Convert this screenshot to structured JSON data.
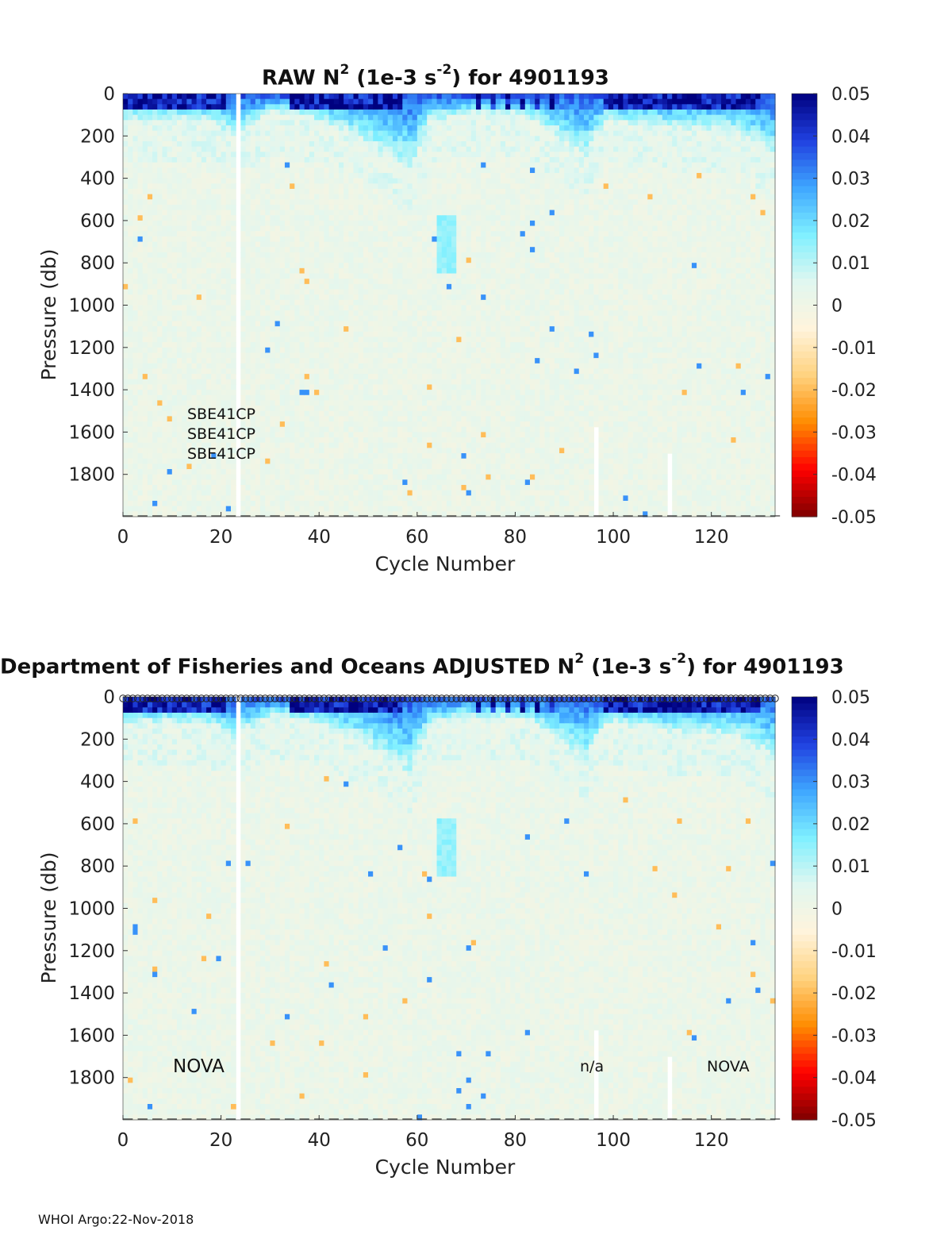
{
  "footer": "WHOI Argo:22-Nov-2018",
  "charts": [
    {
      "title_prefix": "RAW N",
      "title_sup1": "2",
      "title_mid": " (1e-3 s",
      "title_sup2": "-2",
      "title_suffix": ") for 4901193",
      "annotations": [
        "SBE41CP",
        "SBE41CP",
        "SBE41CP"
      ],
      "show_markers": false
    },
    {
      "title_prefix": "Department of Fisheries and Oceans  ADJUSTED N",
      "title_sup1": "2",
      "title_mid": " (1e-3 s",
      "title_sup2": "-2",
      "title_suffix": ") for 4901193",
      "annotations": [
        "NOVA",
        "n/a",
        "NOVA"
      ],
      "show_markers": true
    }
  ],
  "chart_data": [
    {
      "type": "heatmap",
      "title": "RAW N2 (1e-3 s-2) for 4901193",
      "xlabel": "Cycle Number",
      "ylabel": "Pressure (db)",
      "xlim": [
        0,
        133
      ],
      "ylim": [
        0,
        2000
      ],
      "y_reversed": true,
      "xticks": [
        0,
        20,
        40,
        60,
        80,
        100,
        120
      ],
      "yticks": [
        0,
        200,
        400,
        600,
        800,
        1000,
        1200,
        1400,
        1600,
        1800
      ],
      "colorbar": {
        "min": -0.05,
        "max": 0.05,
        "ticks": [
          "0.05",
          "0.04",
          "0.03",
          "0.02",
          "0.01",
          "0",
          "-0.01",
          "-0.02",
          "-0.03",
          "-0.04",
          "-0.05"
        ]
      },
      "colormap": [
        "#7f0000",
        "#ff0000",
        "#ff8c00",
        "#ffd27f",
        "#fff4dc",
        "#e0f7f0",
        "#7ff0ff",
        "#3ea6ff",
        "#2040e0",
        "#00007f"
      ],
      "missing_cycles": [
        23
      ],
      "partial_gaps": [
        {
          "cycle": 96,
          "from_pressure": 1570,
          "to_pressure": 2000
        },
        {
          "cycle": 111,
          "from_pressure": 1700,
          "to_pressure": 2000
        }
      ],
      "features": "Strong positive N2 (0.03-0.05) in upper 0-150 db near surface, deepening to ~350 db around cycles 50-58 and ~250 db near cycles 88-92; mostly near-zero values (-0.005 to 0.01) below 400 db."
    },
    {
      "type": "heatmap",
      "title": "Department of Fisheries and Oceans  ADJUSTED N2 (1e-3 s-2) for 4901193",
      "xlabel": "Cycle Number",
      "ylabel": "Pressure (db)",
      "xlim": [
        0,
        133
      ],
      "ylim": [
        0,
        2000
      ],
      "y_reversed": true,
      "xticks": [
        0,
        20,
        40,
        60,
        80,
        100,
        120
      ],
      "yticks": [
        0,
        200,
        400,
        600,
        800,
        1000,
        1200,
        1400,
        1600,
        1800
      ],
      "colorbar": {
        "min": -0.05,
        "max": 0.05,
        "ticks": [
          "0.05",
          "0.04",
          "0.03",
          "0.02",
          "0.01",
          "0",
          "-0.01",
          "-0.02",
          "-0.03",
          "-0.04",
          "-0.05"
        ]
      },
      "colormap": [
        "#7f0000",
        "#ff0000",
        "#ff8c00",
        "#ffd27f",
        "#fff4dc",
        "#e0f7f0",
        "#7ff0ff",
        "#3ea6ff",
        "#2040e0",
        "#00007f"
      ],
      "missing_cycles": [
        23
      ],
      "partial_gaps": [
        {
          "cycle": 96,
          "from_pressure": 1570,
          "to_pressure": 2000
        },
        {
          "cycle": 111,
          "from_pressure": 1700,
          "to_pressure": 2000
        }
      ],
      "features": "Same structure as raw; row of open-circle markers at 0 db across all cycles."
    }
  ]
}
